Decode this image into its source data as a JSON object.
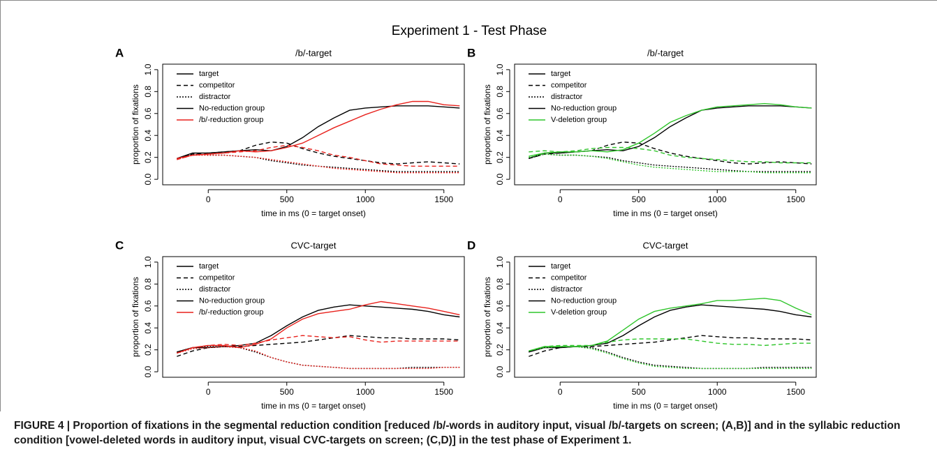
{
  "figure_title": "Experiment 1 - Test Phase",
  "caption": "FIGURE 4 | Proportion of fixations in the segmental reduction condition [reduced /b/-words in auditory input, visual /b/-targets on screen; (A,B)] and in the syllabic reduction condition [vowel-deleted words in auditory input, visual CVC-targets on screen; (C,D)] in the test phase of Experiment 1.",
  "chart_data": [
    {
      "type": "line",
      "label": "A",
      "title": "/b/-target",
      "xlabel": "time in ms (0 = target onset)",
      "ylabel": "proportion of fixations",
      "x": [
        -200,
        -100,
        0,
        100,
        200,
        300,
        400,
        500,
        600,
        700,
        800,
        900,
        1000,
        1100,
        1200,
        1300,
        1400,
        1500,
        1600
      ],
      "xlim": [
        -290,
        1630
      ],
      "xticks": [
        0,
        500,
        1000,
        1500
      ],
      "ylim": [
        -0.05,
        1.05
      ],
      "yticks": [
        {
          "value": 0,
          "label": "0.0"
        },
        {
          "value": 0.2,
          "label": "0.2"
        },
        {
          "value": 0.4,
          "label": "0.4"
        },
        {
          "value": 0.6,
          "label": "0.6"
        },
        {
          "value": 0.8,
          "label": "0.8"
        },
        {
          "value": 1,
          "label": "1.0"
        }
      ],
      "lines": [
        {
          "name": "target",
          "dash": "solid"
        },
        {
          "name": "competitor",
          "dash": "dashed"
        },
        {
          "name": "distractor",
          "dash": "dotted"
        }
      ],
      "series": [
        {
          "name": "No-reduction group",
          "color": "#000000",
          "values": [
            [
              0.19,
              0.24,
              0.24,
              0.25,
              0.26,
              0.27,
              0.26,
              0.3,
              0.38,
              0.48,
              0.56,
              0.63,
              0.65,
              0.66,
              0.67,
              0.67,
              0.67,
              0.66,
              0.65
            ],
            [
              0.19,
              0.23,
              0.24,
              0.25,
              0.26,
              0.31,
              0.34,
              0.33,
              0.28,
              0.24,
              0.21,
              0.19,
              0.17,
              0.15,
              0.14,
              0.15,
              0.16,
              0.15,
              0.14
            ],
            [
              0.19,
              0.23,
              0.22,
              0.22,
              0.21,
              0.2,
              0.17,
              0.15,
              0.13,
              0.12,
              0.11,
              0.1,
              0.09,
              0.08,
              0.07,
              0.07,
              0.07,
              0.07,
              0.07
            ]
          ]
        },
        {
          "name": "/b/-reduction group",
          "color": "#e8211c",
          "values": [
            [
              0.19,
              0.22,
              0.23,
              0.24,
              0.26,
              0.25,
              0.26,
              0.29,
              0.33,
              0.4,
              0.47,
              0.53,
              0.59,
              0.64,
              0.68,
              0.71,
              0.71,
              0.68,
              0.67
            ],
            [
              0.18,
              0.22,
              0.23,
              0.24,
              0.25,
              0.26,
              0.29,
              0.31,
              0.29,
              0.26,
              0.22,
              0.2,
              0.17,
              0.14,
              0.13,
              0.12,
              0.12,
              0.12,
              0.12
            ],
            [
              0.18,
              0.22,
              0.22,
              0.22,
              0.21,
              0.2,
              0.18,
              0.16,
              0.14,
              0.12,
              0.1,
              0.09,
              0.08,
              0.07,
              0.06,
              0.06,
              0.06,
              0.06,
              0.06
            ]
          ]
        }
      ]
    },
    {
      "type": "line",
      "label": "B",
      "title": "/b/-target",
      "xlabel": "time in ms (0 = target onset)",
      "ylabel": "proportion of fixations",
      "x": [
        -200,
        -100,
        0,
        100,
        200,
        300,
        400,
        500,
        600,
        700,
        800,
        900,
        1000,
        1100,
        1200,
        1300,
        1400,
        1500,
        1600
      ],
      "xlim": [
        -290,
        1630
      ],
      "xticks": [
        0,
        500,
        1000,
        1500
      ],
      "ylim": [
        -0.05,
        1.05
      ],
      "yticks": [
        {
          "value": 0,
          "label": "0.0"
        },
        {
          "value": 0.2,
          "label": "0.2"
        },
        {
          "value": 0.4,
          "label": "0.4"
        },
        {
          "value": 0.6,
          "label": "0.6"
        },
        {
          "value": 0.8,
          "label": "0.8"
        },
        {
          "value": 1,
          "label": "1.0"
        }
      ],
      "lines": [
        {
          "name": "target",
          "dash": "solid"
        },
        {
          "name": "competitor",
          "dash": "dashed"
        },
        {
          "name": "distractor",
          "dash": "dotted"
        }
      ],
      "series": [
        {
          "name": "No-reduction group",
          "color": "#000000",
          "values": [
            [
              0.19,
              0.24,
              0.24,
              0.25,
              0.26,
              0.27,
              0.26,
              0.3,
              0.38,
              0.48,
              0.56,
              0.63,
              0.65,
              0.66,
              0.67,
              0.67,
              0.67,
              0.66,
              0.65
            ],
            [
              0.19,
              0.23,
              0.24,
              0.25,
              0.26,
              0.31,
              0.34,
              0.33,
              0.28,
              0.24,
              0.21,
              0.19,
              0.17,
              0.15,
              0.14,
              0.15,
              0.16,
              0.15,
              0.14
            ],
            [
              0.19,
              0.23,
              0.22,
              0.22,
              0.21,
              0.2,
              0.17,
              0.15,
              0.13,
              0.12,
              0.11,
              0.1,
              0.09,
              0.08,
              0.07,
              0.07,
              0.07,
              0.07,
              0.07
            ]
          ]
        },
        {
          "name": "V-deletion group",
          "color": "#2fc52b",
          "values": [
            [
              0.21,
              0.24,
              0.25,
              0.25,
              0.26,
              0.25,
              0.27,
              0.33,
              0.42,
              0.52,
              0.58,
              0.63,
              0.66,
              0.67,
              0.68,
              0.69,
              0.68,
              0.66,
              0.65
            ],
            [
              0.25,
              0.26,
              0.25,
              0.26,
              0.28,
              0.29,
              0.29,
              0.28,
              0.26,
              0.22,
              0.2,
              0.19,
              0.18,
              0.17,
              0.16,
              0.16,
              0.15,
              0.15,
              0.15
            ],
            [
              0.2,
              0.23,
              0.22,
              0.22,
              0.21,
              0.19,
              0.16,
              0.13,
              0.11,
              0.1,
              0.09,
              0.08,
              0.07,
              0.07,
              0.07,
              0.06,
              0.06,
              0.06,
              0.06
            ]
          ]
        }
      ]
    },
    {
      "type": "line",
      "label": "C",
      "title": "CVC-target",
      "xlabel": "time in ms (0 = target onset)",
      "ylabel": "proportion of fixations",
      "x": [
        -200,
        -100,
        0,
        100,
        200,
        300,
        400,
        500,
        600,
        700,
        800,
        900,
        1000,
        1100,
        1200,
        1300,
        1400,
        1500,
        1600
      ],
      "xlim": [
        -290,
        1630
      ],
      "xticks": [
        0,
        500,
        1000,
        1500
      ],
      "ylim": [
        -0.05,
        1.05
      ],
      "yticks": [
        {
          "value": 0,
          "label": "0.0"
        },
        {
          "value": 0.2,
          "label": "0.2"
        },
        {
          "value": 0.4,
          "label": "0.4"
        },
        {
          "value": 0.6,
          "label": "0.6"
        },
        {
          "value": 0.8,
          "label": "0.8"
        },
        {
          "value": 1,
          "label": "1.0"
        }
      ],
      "lines": [
        {
          "name": "target",
          "dash": "solid"
        },
        {
          "name": "competitor",
          "dash": "dashed"
        },
        {
          "name": "distractor",
          "dash": "dotted"
        }
      ],
      "series": [
        {
          "name": "No-reduction group",
          "color": "#000000",
          "values": [
            [
              0.18,
              0.22,
              0.22,
              0.23,
              0.24,
              0.26,
              0.33,
              0.42,
              0.5,
              0.56,
              0.59,
              0.61,
              0.6,
              0.59,
              0.58,
              0.57,
              0.55,
              0.52,
              0.5
            ],
            [
              0.14,
              0.19,
              0.22,
              0.23,
              0.23,
              0.24,
              0.25,
              0.26,
              0.27,
              0.29,
              0.31,
              0.33,
              0.32,
              0.31,
              0.31,
              0.3,
              0.3,
              0.3,
              0.29
            ],
            [
              0.18,
              0.22,
              0.23,
              0.23,
              0.22,
              0.18,
              0.13,
              0.09,
              0.06,
              0.05,
              0.04,
              0.03,
              0.03,
              0.03,
              0.03,
              0.04,
              0.04,
              0.04,
              0.04
            ]
          ]
        },
        {
          "name": "/b/-reduction group",
          "color": "#e8211c",
          "values": [
            [
              0.17,
              0.22,
              0.24,
              0.24,
              0.22,
              0.25,
              0.3,
              0.4,
              0.48,
              0.53,
              0.55,
              0.57,
              0.61,
              0.64,
              0.62,
              0.6,
              0.58,
              0.55,
              0.52
            ],
            [
              0.17,
              0.22,
              0.24,
              0.25,
              0.24,
              0.26,
              0.29,
              0.31,
              0.33,
              0.32,
              0.31,
              0.32,
              0.29,
              0.27,
              0.28,
              0.28,
              0.28,
              0.28,
              0.28
            ],
            [
              0.17,
              0.21,
              0.22,
              0.23,
              0.22,
              0.19,
              0.13,
              0.09,
              0.06,
              0.05,
              0.04,
              0.03,
              0.03,
              0.03,
              0.03,
              0.03,
              0.03,
              0.04,
              0.04
            ]
          ]
        }
      ]
    },
    {
      "type": "line",
      "label": "D",
      "title": "CVC-target",
      "xlabel": "time in ms (0 = target onset)",
      "ylabel": "proportion of fixations",
      "x": [
        -200,
        -100,
        0,
        100,
        200,
        300,
        400,
        500,
        600,
        700,
        800,
        900,
        1000,
        1100,
        1200,
        1300,
        1400,
        1500,
        1600
      ],
      "xlim": [
        -290,
        1630
      ],
      "xticks": [
        0,
        500,
        1000,
        1500
      ],
      "ylim": [
        -0.05,
        1.05
      ],
      "yticks": [
        {
          "value": 0,
          "label": "0.0"
        },
        {
          "value": 0.2,
          "label": "0.2"
        },
        {
          "value": 0.4,
          "label": "0.4"
        },
        {
          "value": 0.6,
          "label": "0.6"
        },
        {
          "value": 0.8,
          "label": "0.8"
        },
        {
          "value": 1,
          "label": "1.0"
        }
      ],
      "lines": [
        {
          "name": "target",
          "dash": "solid"
        },
        {
          "name": "competitor",
          "dash": "dashed"
        },
        {
          "name": "distractor",
          "dash": "dotted"
        }
      ],
      "series": [
        {
          "name": "No-reduction group",
          "color": "#000000",
          "values": [
            [
              0.18,
              0.22,
              0.22,
              0.23,
              0.24,
              0.26,
              0.33,
              0.42,
              0.5,
              0.56,
              0.59,
              0.61,
              0.6,
              0.59,
              0.58,
              0.57,
              0.55,
              0.52,
              0.5
            ],
            [
              0.14,
              0.19,
              0.22,
              0.23,
              0.23,
              0.24,
              0.25,
              0.26,
              0.27,
              0.29,
              0.31,
              0.33,
              0.32,
              0.31,
              0.31,
              0.3,
              0.3,
              0.3,
              0.29
            ],
            [
              0.18,
              0.22,
              0.23,
              0.23,
              0.22,
              0.18,
              0.13,
              0.09,
              0.06,
              0.05,
              0.04,
              0.03,
              0.03,
              0.03,
              0.03,
              0.04,
              0.04,
              0.04,
              0.04
            ]
          ]
        },
        {
          "name": "V-deletion group",
          "color": "#2fc52b",
          "values": [
            [
              0.19,
              0.23,
              0.23,
              0.23,
              0.24,
              0.28,
              0.38,
              0.48,
              0.55,
              0.58,
              0.6,
              0.62,
              0.65,
              0.65,
              0.66,
              0.67,
              0.65,
              0.58,
              0.52
            ],
            [
              0.19,
              0.23,
              0.24,
              0.24,
              0.24,
              0.27,
              0.29,
              0.3,
              0.3,
              0.3,
              0.3,
              0.28,
              0.26,
              0.25,
              0.25,
              0.24,
              0.25,
              0.26,
              0.26
            ],
            [
              0.19,
              0.22,
              0.23,
              0.23,
              0.21,
              0.17,
              0.12,
              0.08,
              0.05,
              0.04,
              0.03,
              0.03,
              0.03,
              0.03,
              0.03,
              0.03,
              0.03,
              0.03,
              0.03
            ]
          ]
        }
      ]
    }
  ]
}
